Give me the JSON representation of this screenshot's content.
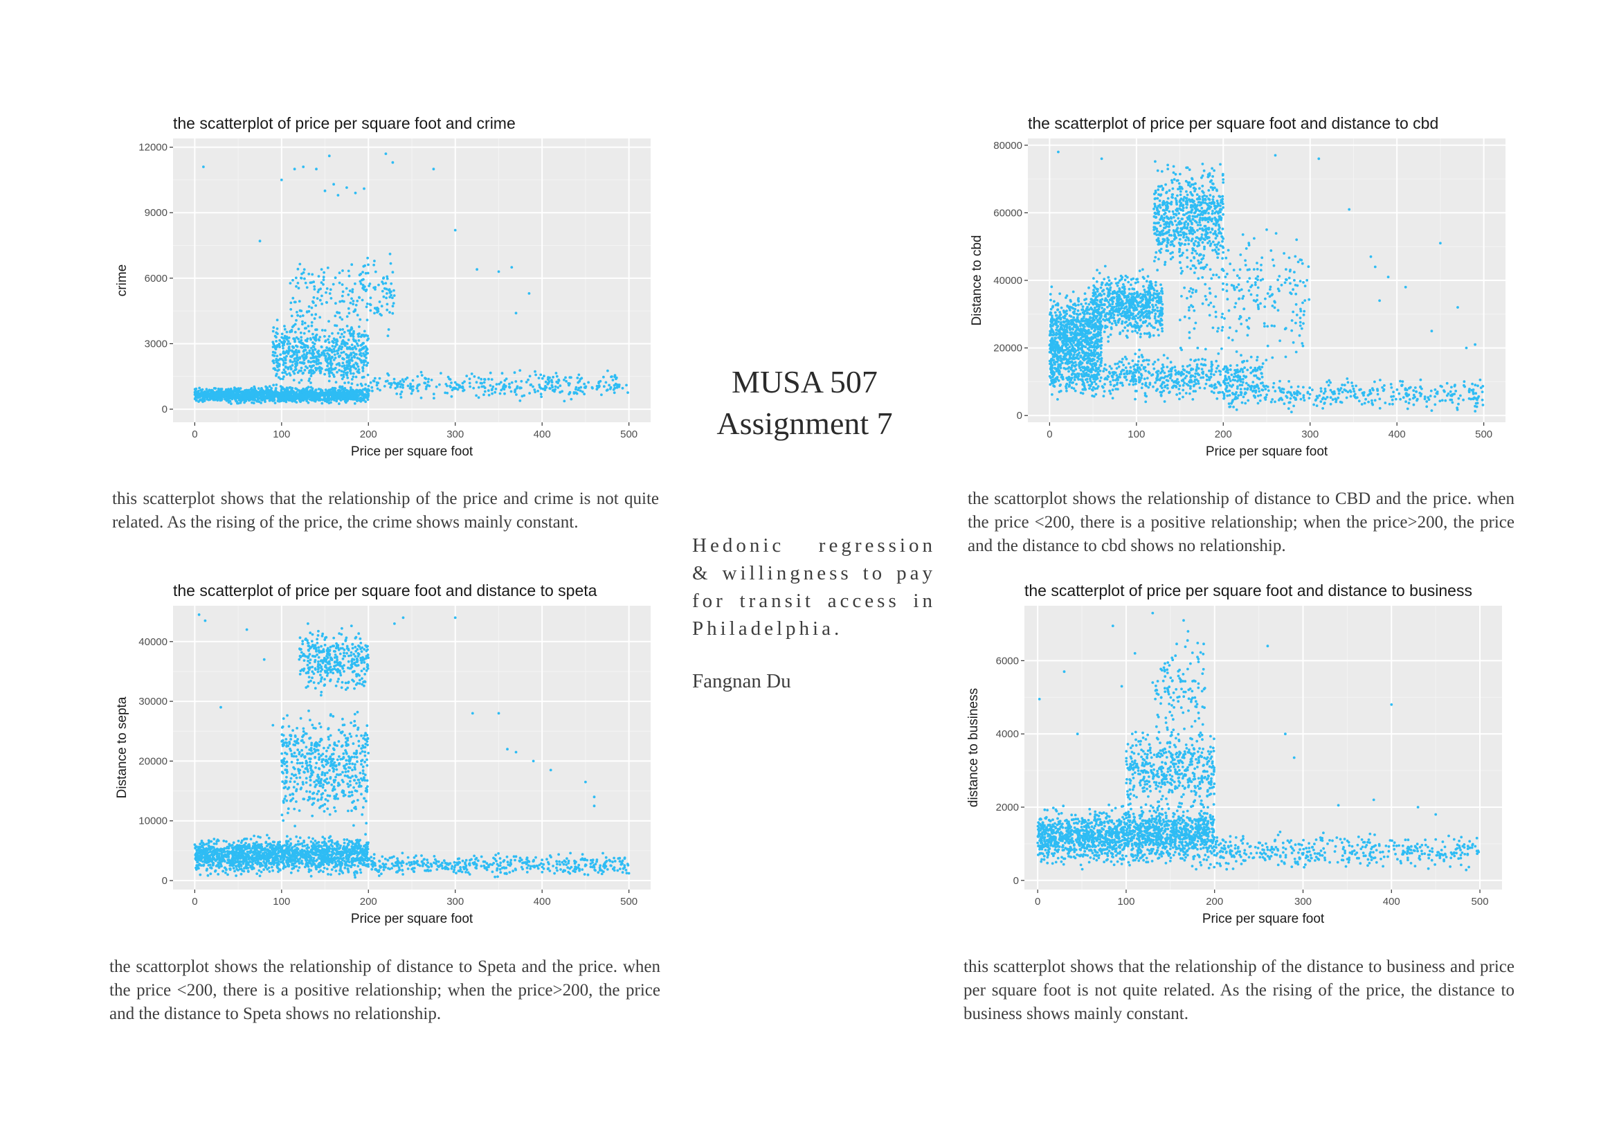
{
  "document": {
    "title_line1": "MUSA 507",
    "title_line2": "Assignment 7",
    "subtitle": "Hedonic regression & willingness to pay for transit access in Philadelphia.",
    "author": "Fangnan Du"
  },
  "captions": {
    "crime": "this scatterplot shows that the relationship of the price and crime is not quite related. As the rising of the price, the crime shows mainly constant.",
    "cbd": "the scattorplot shows the relationship of distance to CBD and the price. when the price <200, there is a positive relationship; when the price>200, the price and the distance to cbd shows no relationship.",
    "septa": "the scattorplot shows the relationship of distance to Speta and the price. when the price <200, there is a positive relationship; when the price>200, the price and the distance to Speta shows no relationship.",
    "business": "this scatterplot shows that the relationship of the distance to business and price per square foot is not quite related. As the rising of the price, the distance to business shows mainly constant."
  },
  "colors": {
    "point": "#2ebcf4",
    "panel_bg": "#ebebeb",
    "grid_major": "#ffffff",
    "grid_minor": "#f4f4f4",
    "text": "#3d3d3d"
  },
  "chart_data": [
    {
      "id": "crime",
      "type": "scatter",
      "title": "the scatterplot of price per square foot and crime",
      "xlabel": "Price per square foot",
      "ylabel": "crime",
      "xlim": [
        -25,
        525
      ],
      "ylim": [
        -600,
        12400
      ],
      "xticks": [
        0,
        100,
        200,
        300,
        400,
        500
      ],
      "yticks": [
        0,
        3000,
        6000,
        9000,
        12000
      ],
      "xtick_labels": [
        "0",
        "100",
        "200",
        "300",
        "400",
        "500"
      ],
      "ytick_labels": [
        "0",
        "3000",
        "6000",
        "9000",
        "12000"
      ],
      "grid": true,
      "clusters": [
        {
          "x": [
            0,
            200
          ],
          "y": [
            200,
            1100
          ],
          "n": 1500
        },
        {
          "x": [
            90,
            200
          ],
          "y": [
            500,
            4500
          ],
          "n": 650
        },
        {
          "x": [
            110,
            230
          ],
          "y": [
            3000,
            7500
          ],
          "n": 200
        },
        {
          "x": [
            200,
            500
          ],
          "y": [
            300,
            1900
          ],
          "n": 320
        }
      ],
      "points": [
        [
          10,
          11100
        ],
        [
          115,
          11000
        ],
        [
          155,
          11600
        ],
        [
          160,
          10300
        ],
        [
          175,
          10150
        ],
        [
          185,
          9900
        ],
        [
          195,
          10100
        ],
        [
          220,
          11700
        ],
        [
          228,
          11300
        ],
        [
          275,
          11000
        ],
        [
          300,
          8200
        ],
        [
          325,
          6400
        ],
        [
          350,
          6300
        ],
        [
          365,
          6500
        ],
        [
          370,
          4400
        ],
        [
          385,
          5300
        ],
        [
          100,
          10500
        ],
        [
          125,
          11100
        ],
        [
          140,
          11000
        ],
        [
          75,
          7700
        ],
        [
          150,
          10000
        ],
        [
          165,
          9800
        ]
      ]
    },
    {
      "id": "cbd",
      "type": "scatter",
      "title": "the scatterplot of price per square foot and distance to cbd",
      "xlabel": "Price per square foot",
      "ylabel": "Distance to cbd",
      "xlim": [
        -25,
        525
      ],
      "ylim": [
        -2000,
        82000
      ],
      "xticks": [
        0,
        100,
        200,
        300,
        400,
        500
      ],
      "yticks": [
        0,
        20000,
        40000,
        60000,
        80000
      ],
      "xtick_labels": [
        "0",
        "100",
        "200",
        "300",
        "400",
        "500"
      ],
      "ytick_labels": [
        "0",
        "20000",
        "40000",
        "60000",
        "80000"
      ],
      "grid": true,
      "clusters": [
        {
          "x": [
            0,
            60
          ],
          "y": [
            5000,
            40000
          ],
          "n": 900
        },
        {
          "x": [
            50,
            130
          ],
          "y": [
            20000,
            45000
          ],
          "n": 650
        },
        {
          "x": [
            120,
            200
          ],
          "y": [
            40000,
            78000
          ],
          "n": 650
        },
        {
          "x": [
            0,
            250
          ],
          "y": [
            3000,
            20000
          ],
          "n": 650
        },
        {
          "x": [
            200,
            500
          ],
          "y": [
            500,
            12000
          ],
          "n": 350
        },
        {
          "x": [
            150,
            300
          ],
          "y": [
            10000,
            60000
          ],
          "n": 250
        }
      ],
      "points": [
        [
          10,
          78000
        ],
        [
          60,
          76000
        ],
        [
          250,
          55000
        ],
        [
          270,
          48000
        ],
        [
          290,
          46000
        ],
        [
          310,
          76000
        ],
        [
          345,
          61000
        ],
        [
          370,
          47000
        ],
        [
          375,
          44000
        ],
        [
          390,
          41000
        ],
        [
          410,
          38000
        ],
        [
          450,
          51000
        ],
        [
          470,
          32000
        ],
        [
          490,
          21000
        ],
        [
          480,
          20000
        ],
        [
          440,
          25000
        ],
        [
          260,
          77000
        ],
        [
          380,
          34000
        ]
      ]
    },
    {
      "id": "septa",
      "type": "scatter",
      "title": "the scatterplot of price per square foot and distance to speta",
      "xlabel": "Price per square foot",
      "ylabel": "Distance to septa",
      "xlim": [
        -25,
        525
      ],
      "ylim": [
        -1500,
        46000
      ],
      "xticks": [
        0,
        100,
        200,
        300,
        400,
        500
      ],
      "yticks": [
        0,
        10000,
        20000,
        30000,
        40000
      ],
      "xtick_labels": [
        "0",
        "100",
        "200",
        "300",
        "400",
        "500"
      ],
      "ytick_labels": [
        "0",
        "10000",
        "20000",
        "30000",
        "40000"
      ],
      "grid": true,
      "clusters": [
        {
          "x": [
            0,
            200
          ],
          "y": [
            300,
            8000
          ],
          "n": 1500
        },
        {
          "x": [
            100,
            200
          ],
          "y": [
            8000,
            30000
          ],
          "n": 550
        },
        {
          "x": [
            120,
            200
          ],
          "y": [
            30000,
            44000
          ],
          "n": 350
        },
        {
          "x": [
            200,
            500
          ],
          "y": [
            300,
            5000
          ],
          "n": 420
        }
      ],
      "points": [
        [
          5,
          44500
        ],
        [
          12,
          43500
        ],
        [
          60,
          42000
        ],
        [
          80,
          37000
        ],
        [
          90,
          26000
        ],
        [
          300,
          44000
        ],
        [
          320,
          28000
        ],
        [
          350,
          28000
        ],
        [
          360,
          22000
        ],
        [
          370,
          21500
        ],
        [
          390,
          20000
        ],
        [
          410,
          18500
        ],
        [
          450,
          16500
        ],
        [
          460,
          12500
        ],
        [
          460,
          14000
        ],
        [
          240,
          44000
        ],
        [
          230,
          43000
        ],
        [
          30,
          29000
        ]
      ]
    },
    {
      "id": "business",
      "type": "scatter",
      "title": "the scatterplot of price per square foot and distance to business",
      "xlabel": "Price per square foot",
      "ylabel": "distance to business",
      "xlim": [
        -15,
        525
      ],
      "ylim": [
        -250,
        7500
      ],
      "xticks": [
        0,
        100,
        200,
        300,
        400,
        500
      ],
      "yticks": [
        0,
        2000,
        4000,
        6000
      ],
      "xtick_labels": [
        "0",
        "100",
        "200",
        "300",
        "400",
        "500"
      ],
      "ytick_labels": [
        "0",
        "2000",
        "4000",
        "6000"
      ],
      "grid": true,
      "clusters": [
        {
          "x": [
            0,
            200
          ],
          "y": [
            200,
            2200
          ],
          "n": 1600
        },
        {
          "x": [
            100,
            200
          ],
          "y": [
            1500,
            4500
          ],
          "n": 450
        },
        {
          "x": [
            130,
            190
          ],
          "y": [
            3500,
            7000
          ],
          "n": 120
        },
        {
          "x": [
            200,
            500
          ],
          "y": [
            200,
            1400
          ],
          "n": 400
        }
      ],
      "points": [
        [
          2,
          4950
        ],
        [
          30,
          5700
        ],
        [
          85,
          6950
        ],
        [
          130,
          7300
        ],
        [
          165,
          7100
        ],
        [
          170,
          6800
        ],
        [
          260,
          6400
        ],
        [
          280,
          4000
        ],
        [
          290,
          3350
        ],
        [
          340,
          2050
        ],
        [
          380,
          2200
        ],
        [
          400,
          4800
        ],
        [
          430,
          2000
        ],
        [
          450,
          1800
        ],
        [
          95,
          5300
        ],
        [
          110,
          6200
        ],
        [
          45,
          4000
        ]
      ]
    }
  ]
}
